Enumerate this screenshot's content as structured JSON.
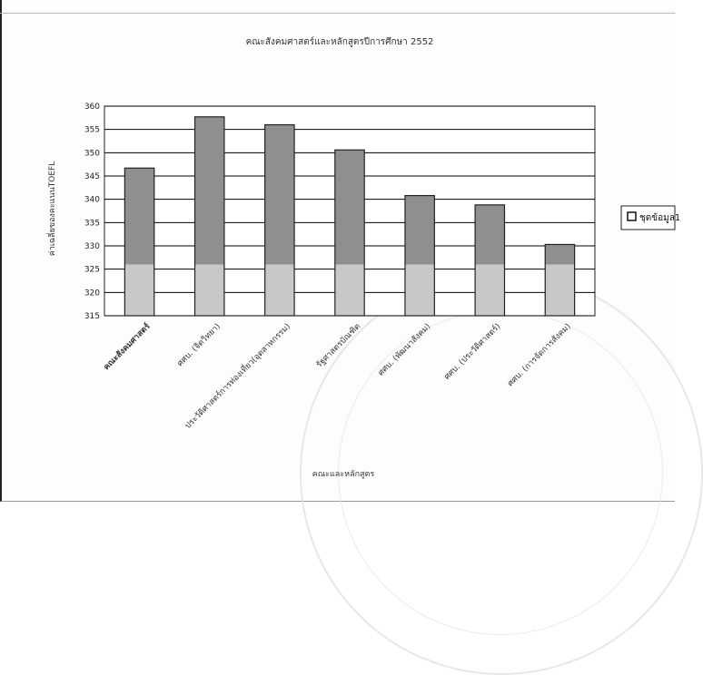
{
  "chart_data": {
    "type": "bar",
    "title": "คณะสังคมศาสตร์และหลักสูตรปีการศึกษา 2552",
    "xlabel": "คณะและหลักสูตร",
    "ylabel": "ค่าเฉลี่ยของคะแนนTOEFL",
    "ylim": [
      315,
      360
    ],
    "yticks": [
      315,
      320,
      325,
      330,
      335,
      340,
      345,
      350,
      355,
      360
    ],
    "grid": true,
    "legend_position": "right",
    "categories": [
      "คณะสังคมศาสตร์",
      "ศศบ. (จิตวิทยา)",
      "ประวัติศาสตร์การท่องเที่ยว(อุตสาหกรรม)",
      "รัฐศาสตรบัณฑิต",
      "ศศบ. (พัฒนาสังคม)",
      "ศศบ. (ประวัติศาสตร์)",
      "ศศบ. (การจัดการสังคม)"
    ],
    "series": [
      {
        "name": "ชุดข้อมูล1",
        "values": [
          346.7,
          357.7,
          356.0,
          350.6,
          340.8,
          338.8,
          330.3
        ]
      }
    ],
    "colors": {
      "bar": "#8f8f8f",
      "bar_lower": "#c8c8c8",
      "grid": "#000000"
    }
  }
}
